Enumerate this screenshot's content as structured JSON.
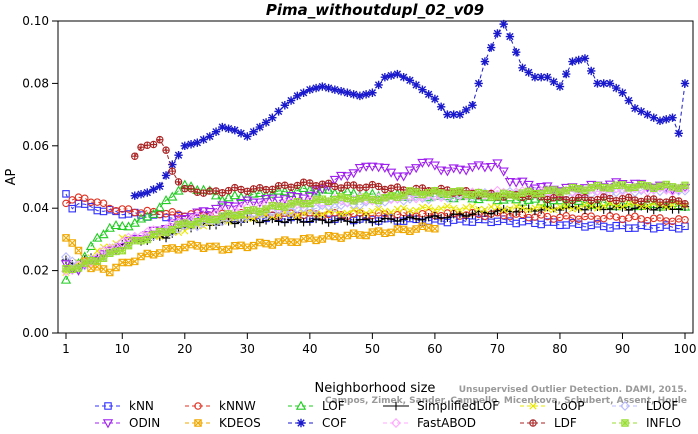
{
  "chart_data": {
    "type": "line",
    "title": "Pima_withoutdupl_02_v09",
    "xlabel": "Neighborhood size",
    "ylabel": "AP",
    "xlim": [
      1,
      100
    ],
    "ylim": [
      0.0,
      0.1
    ],
    "x_ticks": [
      1,
      10,
      20,
      30,
      40,
      50,
      60,
      70,
      80,
      90,
      100
    ],
    "y_ticks": [
      "0.00",
      "0.02",
      "0.04",
      "0.06",
      "0.08",
      "0.10"
    ],
    "grid": false,
    "legend_position": "bottom",
    "watermark": [
      "Unsupervised Outlier Detection. DAMI, 2015.",
      "Campos, Zimek, Sander, Campello, Micenkova, Schubert, Assent, Houle"
    ],
    "series": [
      {
        "name": "kNN",
        "color": "#3030ff",
        "marker": "square",
        "dash": "4,3",
        "knots": [
          [
            1,
            0.044
          ],
          [
            2,
            0.04
          ],
          [
            3,
            0.042
          ],
          [
            5,
            0.04
          ],
          [
            8,
            0.039
          ],
          [
            12,
            0.038
          ],
          [
            20,
            0.037
          ],
          [
            30,
            0.037
          ],
          [
            40,
            0.037
          ],
          [
            50,
            0.0365
          ],
          [
            60,
            0.036
          ],
          [
            70,
            0.036
          ],
          [
            80,
            0.035
          ],
          [
            90,
            0.034
          ],
          [
            100,
            0.034
          ]
        ]
      },
      {
        "name": "kNNW",
        "color": "#e03020",
        "marker": "circle",
        "dash": "4,3",
        "knots": [
          [
            1,
            0.042
          ],
          [
            2,
            0.043
          ],
          [
            4,
            0.043
          ],
          [
            6,
            0.042
          ],
          [
            8,
            0.04
          ],
          [
            12,
            0.039
          ],
          [
            20,
            0.038
          ],
          [
            30,
            0.038
          ],
          [
            40,
            0.038
          ],
          [
            50,
            0.038
          ],
          [
            60,
            0.038
          ],
          [
            70,
            0.038
          ],
          [
            80,
            0.037
          ],
          [
            90,
            0.037
          ],
          [
            100,
            0.036
          ]
        ]
      },
      {
        "name": "LOF",
        "color": "#22cc22",
        "marker": "triangle-up",
        "dash": "4,3",
        "knots": [
          [
            1,
            0.017
          ],
          [
            2,
            0.02
          ],
          [
            4,
            0.025
          ],
          [
            6,
            0.03
          ],
          [
            8,
            0.034
          ],
          [
            10,
            0.034
          ],
          [
            13,
            0.036
          ],
          [
            16,
            0.04
          ],
          [
            19,
            0.046
          ],
          [
            20,
            0.047
          ],
          [
            23,
            0.046
          ],
          [
            26,
            0.043
          ],
          [
            30,
            0.044
          ],
          [
            35,
            0.045
          ],
          [
            40,
            0.046
          ],
          [
            50,
            0.044
          ],
          [
            60,
            0.044
          ],
          [
            70,
            0.043
          ],
          [
            80,
            0.042
          ],
          [
            90,
            0.041
          ],
          [
            100,
            0.041
          ]
        ]
      },
      {
        "name": "SimplifiedLOF",
        "color": "#000000",
        "marker": "plus",
        "dash": "",
        "knots": [
          [
            1,
            0.023
          ],
          [
            3,
            0.022
          ],
          [
            5,
            0.024
          ],
          [
            8,
            0.026
          ],
          [
            10,
            0.029
          ],
          [
            14,
            0.03
          ],
          [
            17,
            0.031
          ],
          [
            20,
            0.034
          ],
          [
            25,
            0.035
          ],
          [
            30,
            0.036
          ],
          [
            40,
            0.036
          ],
          [
            50,
            0.036
          ],
          [
            60,
            0.037
          ],
          [
            70,
            0.039
          ],
          [
            80,
            0.04
          ],
          [
            90,
            0.04
          ],
          [
            100,
            0.04
          ]
        ]
      },
      {
        "name": "LoOP",
        "color": "#e8e800",
        "marker": "x",
        "dash": "4,3",
        "knots": [
          [
            1,
            0.02
          ],
          [
            3,
            0.022
          ],
          [
            6,
            0.026
          ],
          [
            10,
            0.03
          ],
          [
            14,
            0.031
          ],
          [
            18,
            0.032
          ],
          [
            25,
            0.036
          ],
          [
            35,
            0.038
          ],
          [
            50,
            0.039
          ],
          [
            60,
            0.04
          ],
          [
            70,
            0.04
          ],
          [
            80,
            0.04
          ],
          [
            90,
            0.041
          ],
          [
            100,
            0.041
          ]
        ]
      },
      {
        "name": "LDOF",
        "color": "#bbbbff",
        "marker": "diamond",
        "dash": "4,3",
        "knots": [
          [
            1,
            0.024
          ],
          [
            3,
            0.021
          ],
          [
            5,
            0.023
          ],
          [
            8,
            0.026
          ],
          [
            12,
            0.03
          ],
          [
            16,
            0.032
          ],
          [
            20,
            0.034
          ],
          [
            28,
            0.037
          ],
          [
            35,
            0.039
          ],
          [
            45,
            0.041
          ],
          [
            55,
            0.043
          ],
          [
            65,
            0.044
          ],
          [
            75,
            0.045
          ],
          [
            85,
            0.045
          ],
          [
            95,
            0.046
          ],
          [
            100,
            0.046
          ]
        ]
      },
      {
        "name": "ODIN",
        "color": "#a020f0",
        "marker": "triangle-down",
        "dash": "4,3",
        "knots": [
          [
            1,
            0.022
          ],
          [
            3,
            0.02
          ],
          [
            5,
            0.023
          ],
          [
            8,
            0.026
          ],
          [
            12,
            0.03
          ],
          [
            16,
            0.033
          ],
          [
            20,
            0.037
          ],
          [
            25,
            0.04
          ],
          [
            30,
            0.042
          ],
          [
            35,
            0.043
          ],
          [
            40,
            0.044
          ],
          [
            45,
            0.05
          ],
          [
            50,
            0.054
          ],
          [
            55,
            0.05
          ],
          [
            58,
            0.055
          ],
          [
            62,
            0.052
          ],
          [
            66,
            0.053
          ],
          [
            70,
            0.054
          ],
          [
            72,
            0.049
          ],
          [
            76,
            0.047
          ],
          [
            80,
            0.046
          ],
          [
            85,
            0.047
          ],
          [
            90,
            0.048
          ],
          [
            95,
            0.047
          ],
          [
            100,
            0.046
          ]
        ]
      },
      {
        "name": "KDEOS",
        "color": "#f0a800",
        "marker": "square-x",
        "dash": "4,3",
        "knots": [
          [
            1,
            0.031
          ],
          [
            3,
            0.026
          ],
          [
            5,
            0.021
          ],
          [
            8,
            0.02
          ],
          [
            10,
            0.022
          ],
          [
            14,
            0.025
          ],
          [
            18,
            0.027
          ],
          [
            22,
            0.028
          ],
          [
            26,
            0.027
          ],
          [
            30,
            0.028
          ],
          [
            35,
            0.029
          ],
          [
            40,
            0.03
          ],
          [
            45,
            0.031
          ],
          [
            50,
            0.032
          ],
          [
            55,
            0.033
          ],
          [
            60,
            0.034
          ]
        ]
      },
      {
        "name": "COF",
        "color": "#1a1acc",
        "marker": "asterisk",
        "dash": "4,3",
        "knots": [
          [
            12,
            0.044
          ],
          [
            14,
            0.045
          ],
          [
            16,
            0.047
          ],
          [
            18,
            0.054
          ],
          [
            20,
            0.06
          ],
          [
            22,
            0.061
          ],
          [
            24,
            0.063
          ],
          [
            26,
            0.066
          ],
          [
            28,
            0.065
          ],
          [
            30,
            0.063
          ],
          [
            32,
            0.066
          ],
          [
            34,
            0.069
          ],
          [
            36,
            0.073
          ],
          [
            38,
            0.076
          ],
          [
            40,
            0.078
          ],
          [
            42,
            0.079
          ],
          [
            44,
            0.078
          ],
          [
            46,
            0.077
          ],
          [
            48,
            0.076
          ],
          [
            50,
            0.077
          ],
          [
            52,
            0.082
          ],
          [
            54,
            0.083
          ],
          [
            56,
            0.081
          ],
          [
            58,
            0.078
          ],
          [
            60,
            0.075
          ],
          [
            62,
            0.07
          ],
          [
            64,
            0.07
          ],
          [
            66,
            0.073
          ],
          [
            68,
            0.087
          ],
          [
            70,
            0.096
          ],
          [
            71,
            0.099
          ],
          [
            72,
            0.095
          ],
          [
            74,
            0.085
          ],
          [
            76,
            0.082
          ],
          [
            78,
            0.082
          ],
          [
            80,
            0.079
          ],
          [
            82,
            0.087
          ],
          [
            84,
            0.088
          ],
          [
            86,
            0.08
          ],
          [
            88,
            0.08
          ],
          [
            90,
            0.077
          ],
          [
            92,
            0.072
          ],
          [
            94,
            0.07
          ],
          [
            96,
            0.068
          ],
          [
            98,
            0.069
          ],
          [
            99,
            0.064
          ],
          [
            100,
            0.08
          ]
        ]
      },
      {
        "name": "FastABOD",
        "color": "#ffaaff",
        "marker": "diamond-o",
        "dash": "4,3",
        "knots": [
          [
            1,
            0.02
          ],
          [
            4,
            0.022
          ],
          [
            8,
            0.027
          ],
          [
            12,
            0.031
          ],
          [
            16,
            0.033
          ],
          [
            20,
            0.036
          ],
          [
            30,
            0.04
          ],
          [
            40,
            0.042
          ],
          [
            50,
            0.043
          ],
          [
            60,
            0.044
          ],
          [
            70,
            0.045
          ],
          [
            80,
            0.045
          ],
          [
            90,
            0.046
          ],
          [
            100,
            0.046
          ]
        ]
      },
      {
        "name": "LDF",
        "color": "#aa2222",
        "marker": "circle-plus",
        "dash": "4,3",
        "knots": [
          [
            12,
            0.057
          ],
          [
            13,
            0.059
          ],
          [
            14,
            0.06
          ],
          [
            15,
            0.061
          ],
          [
            16,
            0.062
          ],
          [
            17,
            0.058
          ],
          [
            18,
            0.052
          ],
          [
            20,
            0.046
          ],
          [
            24,
            0.045
          ],
          [
            28,
            0.046
          ],
          [
            32,
            0.046
          ],
          [
            36,
            0.047
          ],
          [
            40,
            0.048
          ],
          [
            45,
            0.047
          ],
          [
            50,
            0.047
          ],
          [
            55,
            0.046
          ],
          [
            60,
            0.046
          ],
          [
            65,
            0.045
          ],
          [
            70,
            0.044
          ],
          [
            75,
            0.044
          ],
          [
            80,
            0.043
          ],
          [
            90,
            0.043
          ],
          [
            100,
            0.042
          ]
        ]
      },
      {
        "name": "INFLO",
        "color": "#99dd33",
        "marker": "square-star",
        "dash": "4,3",
        "knots": [
          [
            1,
            0.02
          ],
          [
            4,
            0.022
          ],
          [
            8,
            0.025
          ],
          [
            12,
            0.029
          ],
          [
            16,
            0.032
          ],
          [
            20,
            0.035
          ],
          [
            28,
            0.038
          ],
          [
            36,
            0.041
          ],
          [
            44,
            0.043
          ],
          [
            52,
            0.043
          ],
          [
            56,
            0.045
          ],
          [
            60,
            0.045
          ],
          [
            64,
            0.045
          ],
          [
            70,
            0.044
          ],
          [
            76,
            0.045
          ],
          [
            82,
            0.046
          ],
          [
            88,
            0.047
          ],
          [
            92,
            0.047
          ],
          [
            96,
            0.047
          ],
          [
            100,
            0.047
          ]
        ]
      }
    ]
  }
}
